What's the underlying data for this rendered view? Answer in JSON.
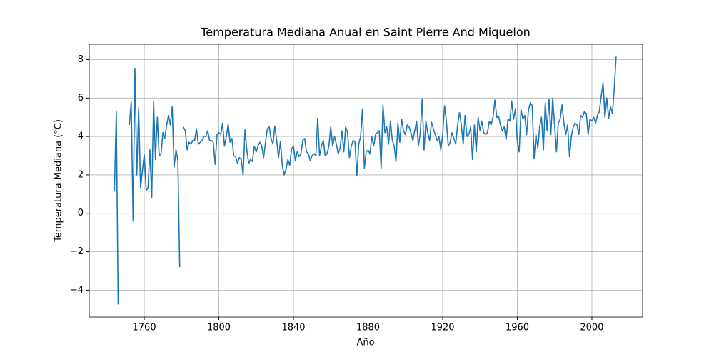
{
  "chart_data": {
    "type": "line",
    "title": "Temperatura Mediana Anual en Saint Pierre And Miquelon",
    "xlabel": "Año",
    "ylabel": "Temperatura Mediana (°C)",
    "x": [
      1744,
      1745,
      1746,
      1747,
      1748,
      1749,
      1750,
      1751,
      1752,
      1753,
      1754,
      1755,
      1756,
      1757,
      1758,
      1759,
      1760,
      1761,
      1762,
      1763,
      1764,
      1765,
      1766,
      1767,
      1768,
      1769,
      1770,
      1771,
      1772,
      1773,
      1774,
      1775,
      1776,
      1777,
      1778,
      1779,
      1780,
      1781,
      1782,
      1783,
      1784,
      1785,
      1786,
      1787,
      1788,
      1789,
      1790,
      1791,
      1792,
      1793,
      1794,
      1795,
      1796,
      1797,
      1798,
      1799,
      1800,
      1801,
      1802,
      1803,
      1804,
      1805,
      1806,
      1807,
      1808,
      1809,
      1810,
      1811,
      1812,
      1813,
      1814,
      1815,
      1816,
      1817,
      1818,
      1819,
      1820,
      1821,
      1822,
      1823,
      1824,
      1825,
      1826,
      1827,
      1828,
      1829,
      1830,
      1831,
      1832,
      1833,
      1834,
      1835,
      1836,
      1837,
      1838,
      1839,
      1840,
      1841,
      1842,
      1843,
      1844,
      1845,
      1846,
      1847,
      1848,
      1849,
      1850,
      1851,
      1852,
      1853,
      1854,
      1855,
      1856,
      1857,
      1858,
      1859,
      1860,
      1861,
      1862,
      1863,
      1864,
      1865,
      1866,
      1867,
      1868,
      1869,
      1870,
      1871,
      1872,
      1873,
      1874,
      1875,
      1876,
      1877,
      1878,
      1879,
      1880,
      1881,
      1882,
      1883,
      1884,
      1885,
      1886,
      1887,
      1888,
      1889,
      1890,
      1891,
      1892,
      1893,
      1894,
      1895,
      1896,
      1897,
      1898,
      1899,
      1900,
      1901,
      1902,
      1903,
      1904,
      1905,
      1906,
      1907,
      1908,
      1909,
      1910,
      1911,
      1912,
      1913,
      1914,
      1915,
      1916,
      1917,
      1918,
      1919,
      1920,
      1921,
      1922,
      1923,
      1924,
      1925,
      1926,
      1927,
      1928,
      1929,
      1930,
      1931,
      1932,
      1933,
      1934,
      1935,
      1936,
      1937,
      1938,
      1939,
      1940,
      1941,
      1942,
      1943,
      1944,
      1945,
      1946,
      1947,
      1948,
      1949,
      1950,
      1951,
      1952,
      1953,
      1954,
      1955,
      1956,
      1957,
      1958,
      1959,
      1960,
      1961,
      1962,
      1963,
      1964,
      1965,
      1966,
      1967,
      1968,
      1969,
      1970,
      1971,
      1972,
      1973,
      1974,
      1975,
      1976,
      1977,
      1978,
      1979,
      1980,
      1981,
      1982,
      1983,
      1984,
      1985,
      1986,
      1987,
      1988,
      1989,
      1990,
      1991,
      1992,
      1993,
      1994,
      1995,
      1996,
      1997,
      1998,
      1999,
      2000,
      2001,
      2002,
      2003,
      2004,
      2005,
      2006,
      2007,
      2008,
      2009,
      2010,
      2011,
      2012,
      2013
    ],
    "series": [
      {
        "name": "Temperatura Mediana",
        "color": "#1f77b4",
        "values": [
          1.15,
          5.3,
          -4.75,
          null,
          null,
          null,
          null,
          null,
          4.6,
          5.8,
          -0.4,
          7.55,
          2.0,
          5.5,
          1.3,
          2.2,
          3.05,
          1.2,
          1.3,
          3.3,
          0.8,
          5.8,
          2.8,
          5.0,
          3.0,
          3.1,
          4.2,
          3.9,
          4.6,
          5.1,
          4.6,
          5.55,
          2.4,
          3.3,
          2.8,
          -2.8,
          null,
          4.5,
          4.3,
          3.3,
          3.7,
          3.6,
          3.8,
          3.8,
          4.4,
          3.6,
          3.7,
          3.8,
          4.0,
          4.0,
          4.3,
          3.8,
          3.8,
          3.7,
          2.55,
          4.1,
          4.2,
          4.1,
          4.7,
          3.5,
          4.0,
          4.65,
          3.7,
          3.9,
          3.0,
          2.95,
          2.6,
          2.9,
          2.8,
          2.0,
          4.35,
          3.3,
          2.6,
          2.8,
          2.7,
          3.5,
          3.2,
          3.5,
          3.7,
          3.5,
          2.9,
          3.7,
          4.4,
          4.5,
          3.9,
          3.6,
          4.55,
          3.8,
          2.9,
          3.75,
          2.5,
          2.0,
          2.3,
          2.8,
          2.5,
          3.35,
          3.5,
          2.75,
          3.2,
          2.95,
          3.1,
          3.8,
          3.9,
          3.2,
          3.1,
          2.75,
          3.0,
          3.1,
          3.0,
          4.95,
          3.0,
          3.5,
          3.8,
          3.0,
          3.1,
          3.5,
          4.5,
          3.5,
          4.0,
          3.6,
          3.1,
          3.4,
          4.3,
          3.2,
          4.5,
          4.2,
          2.9,
          3.5,
          3.8,
          3.7,
          1.95,
          3.6,
          4.0,
          5.45,
          2.35,
          3.2,
          3.3,
          3.1,
          4.0,
          3.5,
          4.1,
          4.2,
          4.3,
          2.35,
          5.65,
          4.2,
          4.5,
          3.6,
          4.8,
          3.8,
          3.5,
          2.7,
          4.7,
          3.7,
          4.9,
          4.3,
          4.1,
          4.6,
          4.5,
          4.2,
          3.8,
          4.3,
          4.8,
          3.5,
          4.2,
          5.95,
          3.3,
          4.8,
          4.2,
          3.8,
          4.75,
          4.4,
          4.1,
          3.8,
          4.0,
          3.3,
          4.1,
          5.6,
          4.8,
          3.5,
          3.7,
          4.2,
          3.9,
          3.6,
          4.6,
          5.25,
          4.6,
          3.6,
          5.1,
          4.0,
          4.1,
          4.5,
          2.8,
          4.6,
          3.2,
          5.0,
          4.3,
          4.8,
          4.2,
          4.1,
          4.2,
          4.8,
          4.6,
          5.0,
          5.9,
          5.0,
          5.05,
          4.6,
          4.3,
          4.5,
          3.85,
          4.9,
          4.8,
          5.85,
          4.9,
          5.45,
          3.75,
          3.2,
          5.4,
          4.9,
          5.1,
          4.1,
          5.4,
          5.75,
          5.6,
          2.85,
          4.1,
          3.4,
          4.5,
          5.0,
          3.3,
          5.75,
          4.3,
          5.95,
          4.1,
          6.0,
          4.6,
          3.2,
          4.7,
          4.9,
          5.65,
          4.7,
          4.1,
          4.6,
          2.95,
          4.0,
          4.5,
          4.7,
          4.6,
          4.1,
          5.1,
          5.0,
          5.3,
          5.2,
          4.1,
          4.9,
          4.8,
          5.0,
          4.7,
          5.1,
          5.3,
          6.1,
          6.8,
          5.0,
          6.0,
          4.95,
          5.55,
          5.2,
          6.5,
          8.15
        ]
      }
    ],
    "xlim": [
      1730.5,
      2027.2
    ],
    "ylim": [
      -5.4,
      8.8
    ],
    "xticks": [
      1760,
      1800,
      1840,
      1880,
      1920,
      1960,
      2000
    ],
    "yticks": [
      {
        "value": -4,
        "label": "−4"
      },
      {
        "value": -2,
        "label": "−2"
      },
      0,
      2,
      4,
      6,
      8
    ],
    "grid": true
  }
}
